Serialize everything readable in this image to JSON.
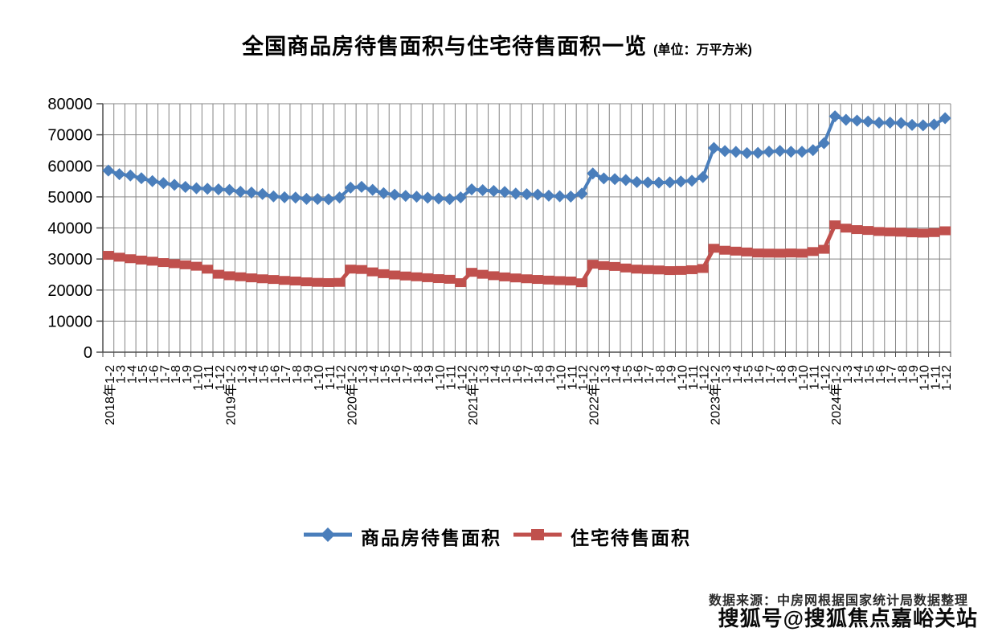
{
  "title": {
    "text": "全国商品房待售面积与住宅待售面积一览",
    "unit": "(单位：万平方米)"
  },
  "footer": {
    "source": "数据来源：中房网根据国家统计局数据整理"
  },
  "watermark": "搜狐号@搜狐焦点嘉峪关站",
  "colors": {
    "grid": "#858585",
    "axis": "#4d4d4d",
    "tick_label": "#000000"
  },
  "chart_data": {
    "type": "line",
    "title": "全国商品房待售面积与住宅待售面积一览",
    "unit": "万平方米",
    "ylim": [
      0,
      80000
    ],
    "ytick_step": 10000,
    "grid": true,
    "legend_position": "bottom",
    "categories": [
      "2018年1-2",
      "1-3",
      "1-4",
      "1-5",
      "1-6",
      "1-7",
      "1-8",
      "1-9",
      "1-10",
      "1-11",
      "1-12",
      "2019年1-2",
      "1-3",
      "1-4",
      "1-5",
      "1-6",
      "1-7",
      "1-8",
      "1-9",
      "1-10",
      "1-11",
      "1-12",
      "2020年1-2",
      "1-3",
      "1-4",
      "1-5",
      "1-6",
      "1-7",
      "1-8",
      "1-9",
      "1-10",
      "1-11",
      "1-12",
      "2021年1-2",
      "1-3",
      "1-4",
      "1-5",
      "1-6",
      "1-7",
      "1-8",
      "1-9",
      "1-10",
      "1-11",
      "1-12",
      "2022年1-2",
      "1-3",
      "1-4",
      "1-5",
      "1-6",
      "1-7",
      "1-8",
      "1-9",
      "1-10",
      "1-11",
      "1-12",
      "2023年1-2",
      "1-3",
      "1-4",
      "1-5",
      "1-6",
      "1-7",
      "1-8",
      "1-9",
      "1-10",
      "1-11",
      "1-12",
      "2024年1-2",
      "1-3",
      "1-4",
      "1-5",
      "1-6",
      "1-7",
      "1-8",
      "1-9",
      "1-10",
      "1-11",
      "1-12"
    ],
    "series": [
      {
        "name": "商品房待售面积",
        "marker": "diamond",
        "color": "#4A7EBB",
        "values": [
          58468,
          57329,
          56898,
          56010,
          55083,
          54428,
          53873,
          53191,
          52789,
          52627,
          52414,
          52251,
          51646,
          51380,
          50928,
          50162,
          49876,
          49784,
          49346,
          49323,
          49221,
          49821,
          52967,
          53251,
          52255,
          51184,
          50718,
          50324,
          50052,
          49753,
          49492,
          49287,
          49850,
          52425,
          52183,
          51898,
          51587,
          51075,
          50864,
          50738,
          50385,
          50203,
          50082,
          51023,
          57552,
          55954,
          55735,
          55433,
          54784,
          54655,
          54605,
          54703,
          54936,
          55203,
          56366,
          65760,
          64770,
          64487,
          64120,
          64159,
          64564,
          64795,
          64537,
          64540,
          65050,
          67295,
          75969,
          74833,
          74553,
          74256,
          73894,
          73926,
          73771,
          73177,
          73057,
          73286,
          75327
        ]
      },
      {
        "name": "住宅待售面积",
        "marker": "square",
        "color": "#C0504D",
        "values": [
          31185,
          30583,
          30094,
          29661,
          29287,
          28850,
          28490,
          28123,
          27672,
          26724,
          25091,
          24609,
          24281,
          23929,
          23624,
          23401,
          23107,
          22919,
          22660,
          22481,
          22403,
          22473,
          26743,
          26617,
          25857,
          25274,
          24855,
          24533,
          24273,
          23974,
          23680,
          23465,
          22379,
          25713,
          25080,
          24622,
          24242,
          23905,
          23628,
          23418,
          23214,
          23049,
          22921,
          22353,
          28320,
          27870,
          27600,
          27110,
          26740,
          26590,
          26470,
          26261,
          26313,
          26547,
          26947,
          33452,
          32826,
          32536,
          32270,
          31932,
          31893,
          31862,
          31939,
          31862,
          32403,
          33119,
          40993,
          39938,
          39466,
          39194,
          38863,
          38733,
          38622,
          38424,
          38327,
          38500,
          39088
        ]
      }
    ]
  }
}
